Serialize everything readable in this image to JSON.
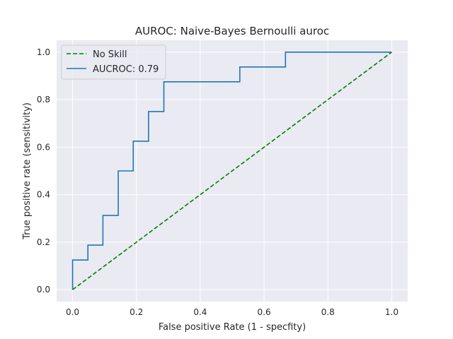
{
  "chart_data": {
    "type": "line",
    "title": "AUROC: Naive-Bayes Bernoulli auroc",
    "xlabel": "False positive Rate (1 - specfity)",
    "ylabel": "True positive rate (sensitivity)",
    "xlim": [
      -0.05,
      1.05
    ],
    "ylim": [
      -0.05,
      1.05
    ],
    "xticks": [
      "0.0",
      "0.2",
      "0.4",
      "0.6",
      "0.8",
      "1.0"
    ],
    "yticks": [
      "0.0",
      "0.2",
      "0.4",
      "0.6",
      "0.8",
      "1.0"
    ],
    "grid": true,
    "legend_position": "top-left",
    "series": [
      {
        "name": "No Skill",
        "style": "dashed",
        "color": "#008000",
        "x": [
          0,
          1
        ],
        "y": [
          0,
          1
        ]
      },
      {
        "name": "AUCROC: 0.79",
        "style": "solid",
        "color": "#1f77b4",
        "x": [
          0,
          0,
          0.048,
          0.048,
          0.095,
          0.095,
          0.143,
          0.143,
          0.19,
          0.19,
          0.238,
          0.238,
          0.286,
          0.286,
          0.524,
          0.524,
          0.667,
          0.667,
          1.0
        ],
        "y": [
          0,
          0.125,
          0.125,
          0.1875,
          0.1875,
          0.3125,
          0.3125,
          0.5,
          0.5,
          0.625,
          0.625,
          0.75,
          0.75,
          0.875,
          0.875,
          0.9375,
          0.9375,
          1.0,
          1.0
        ]
      }
    ]
  }
}
